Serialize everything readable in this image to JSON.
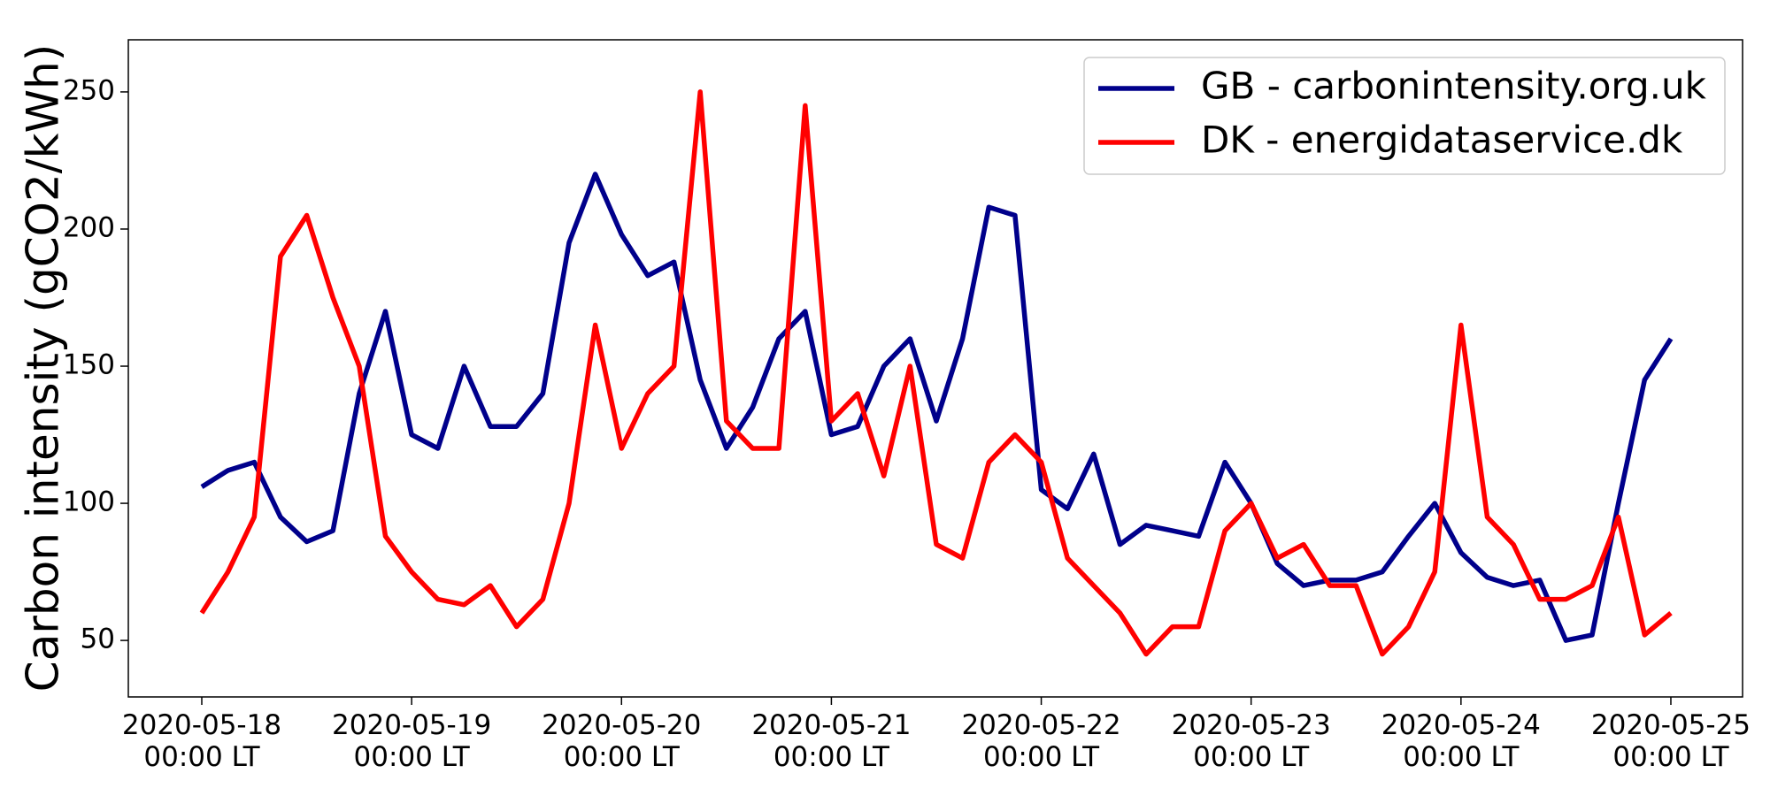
{
  "chart_data": {
    "type": "line",
    "y_label": "Carbon intensity (gCO2/kWh)",
    "x": [
      "2020-05-18 00:00",
      "2020-05-18 03:00",
      "2020-05-18 06:00",
      "2020-05-18 09:00",
      "2020-05-18 12:00",
      "2020-05-18 15:00",
      "2020-05-18 18:00",
      "2020-05-18 21:00",
      "2020-05-19 00:00",
      "2020-05-19 03:00",
      "2020-05-19 06:00",
      "2020-05-19 09:00",
      "2020-05-19 12:00",
      "2020-05-19 15:00",
      "2020-05-19 18:00",
      "2020-05-19 21:00",
      "2020-05-20 00:00",
      "2020-05-20 03:00",
      "2020-05-20 06:00",
      "2020-05-20 09:00",
      "2020-05-20 12:00",
      "2020-05-20 15:00",
      "2020-05-20 18:00",
      "2020-05-20 21:00",
      "2020-05-21 00:00",
      "2020-05-21 03:00",
      "2020-05-21 06:00",
      "2020-05-21 09:00",
      "2020-05-21 12:00",
      "2020-05-21 15:00",
      "2020-05-21 18:00",
      "2020-05-21 21:00",
      "2020-05-22 00:00",
      "2020-05-22 03:00",
      "2020-05-22 06:00",
      "2020-05-22 09:00",
      "2020-05-22 12:00",
      "2020-05-22 15:00",
      "2020-05-22 18:00",
      "2020-05-22 21:00",
      "2020-05-23 00:00",
      "2020-05-23 03:00",
      "2020-05-23 06:00",
      "2020-05-23 09:00",
      "2020-05-23 12:00",
      "2020-05-23 15:00",
      "2020-05-23 18:00",
      "2020-05-23 21:00",
      "2020-05-24 00:00",
      "2020-05-24 03:00",
      "2020-05-24 06:00",
      "2020-05-24 09:00",
      "2020-05-24 12:00",
      "2020-05-24 15:00",
      "2020-05-24 18:00",
      "2020-05-24 21:00",
      "2020-05-25 00:00"
    ],
    "series": [
      {
        "name": "GB - carbonintensity.org.uk",
        "color": "#00008b",
        "values": [
          106,
          112,
          115,
          95,
          86,
          90,
          140,
          170,
          125,
          120,
          150,
          128,
          128,
          140,
          195,
          220,
          198,
          183,
          188,
          145,
          120,
          135,
          160,
          170,
          125,
          128,
          150,
          160,
          130,
          160,
          208,
          205,
          105,
          98,
          118,
          85,
          92,
          90,
          88,
          115,
          100,
          78,
          70,
          72,
          72,
          75,
          88,
          100,
          82,
          73,
          70,
          72,
          50,
          52,
          100,
          145,
          160
        ]
      },
      {
        "name": "DK - energidataservice.dk",
        "color": "#ff0000",
        "values": [
          60,
          75,
          95,
          190,
          205,
          175,
          150,
          88,
          75,
          65,
          63,
          70,
          55,
          65,
          100,
          165,
          120,
          140,
          150,
          250,
          130,
          120,
          120,
          245,
          130,
          140,
          110,
          150,
          85,
          80,
          115,
          125,
          115,
          80,
          70,
          60,
          45,
          55,
          55,
          90,
          100,
          80,
          85,
          70,
          70,
          45,
          55,
          75,
          165,
          95,
          85,
          65,
          65,
          70,
          95,
          52,
          60
        ]
      }
    ],
    "xlim": [
      "2020-05-17 15:36",
      "2020-05-25 08:12"
    ],
    "xticks": [
      {
        "value": "2020-05-18 00:00",
        "label": "2020-05-18\n00:00 LT"
      },
      {
        "value": "2020-05-19 00:00",
        "label": "2020-05-19\n00:00 LT"
      },
      {
        "value": "2020-05-20 00:00",
        "label": "2020-05-20\n00:00 LT"
      },
      {
        "value": "2020-05-21 00:00",
        "label": "2020-05-21\n00:00 LT"
      },
      {
        "value": "2020-05-22 00:00",
        "label": "2020-05-22\n00:00 LT"
      },
      {
        "value": "2020-05-23 00:00",
        "label": "2020-05-23\n00:00 LT"
      },
      {
        "value": "2020-05-24 00:00",
        "label": "2020-05-24\n00:00 LT"
      },
      {
        "value": "2020-05-25 00:00",
        "label": "2020-05-25\n00:00 LT"
      }
    ],
    "ylim": [
      29.4,
      269
    ],
    "yticks": [
      50,
      100,
      150,
      200,
      250
    ],
    "grid": false,
    "legend": "upper right"
  }
}
